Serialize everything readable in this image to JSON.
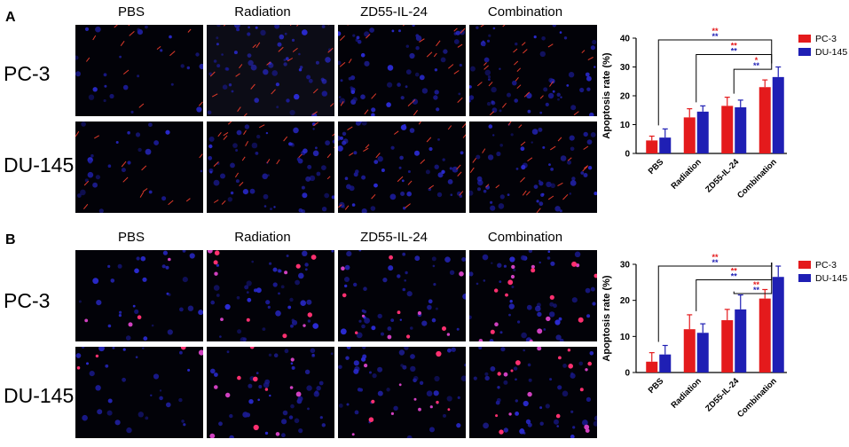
{
  "panels": [
    {
      "letter": "A",
      "columns": [
        "PBS",
        "Radiation",
        "ZD55-IL-24",
        "Combination"
      ],
      "rows": [
        "PC-3",
        "DU-145"
      ]
    },
    {
      "letter": "B",
      "columns": [
        "PBS",
        "Radiation",
        "ZD55-IL-24",
        "Combination"
      ],
      "rows": [
        "PC-3",
        "DU-145"
      ]
    }
  ],
  "colors": {
    "pc3": "#e41a1c",
    "du145": "#1f1fb4",
    "sig_red": "#e41a1c",
    "sig_blue": "#1f1fb4"
  },
  "chart_data": [
    {
      "type": "bar",
      "ylabel": "Apoptosis rate (%)",
      "ylim": [
        0,
        40
      ],
      "yticks": [
        "0",
        "10",
        "20",
        "30",
        "40"
      ],
      "categories": [
        "PBS",
        "Radiation",
        "ZD55-IL-24",
        "Combination"
      ],
      "series": [
        {
          "name": "PC-3",
          "values": [
            4.5,
            12.5,
            16.5,
            23
          ],
          "errors": [
            1.5,
            3,
            3,
            2.5
          ]
        },
        {
          "name": "DU-145",
          "values": [
            5.5,
            14.5,
            16,
            26.5
          ],
          "errors": [
            3,
            2,
            2.5,
            3.5
          ]
        }
      ],
      "legend": "top-right",
      "significance": [
        {
          "from": "PBS",
          "to": "Combination",
          "red": "**",
          "blue": "**"
        },
        {
          "from": "Radiation",
          "to": "Combination",
          "red": "**",
          "blue": "**"
        },
        {
          "from": "ZD55-IL-24",
          "to": "Combination",
          "red": "*",
          "blue": "**"
        }
      ]
    },
    {
      "type": "bar",
      "ylabel": "Apoptosis rate (%)",
      "ylim": [
        0,
        30
      ],
      "yticks": [
        "0",
        "10",
        "20",
        "30"
      ],
      "categories": [
        "PBS",
        "Radiation",
        "ZD55-IL-24",
        "Combination"
      ],
      "series": [
        {
          "name": "PC-3",
          "values": [
            3,
            12,
            14.5,
            20.5
          ],
          "errors": [
            2.5,
            4,
            3,
            2.5
          ]
        },
        {
          "name": "DU-145",
          "values": [
            5,
            11,
            17.5,
            26.5
          ],
          "errors": [
            2.5,
            2.5,
            4,
            3
          ]
        }
      ],
      "legend": "top-right",
      "significance": [
        {
          "from": "PBS",
          "to": "Combination",
          "red": "**",
          "blue": "**"
        },
        {
          "from": "Radiation",
          "to": "Combination",
          "red": "**",
          "blue": "**"
        },
        {
          "from": "ZD55-IL-24",
          "to": "Combination",
          "red": "**",
          "blue": "**"
        }
      ]
    }
  ]
}
